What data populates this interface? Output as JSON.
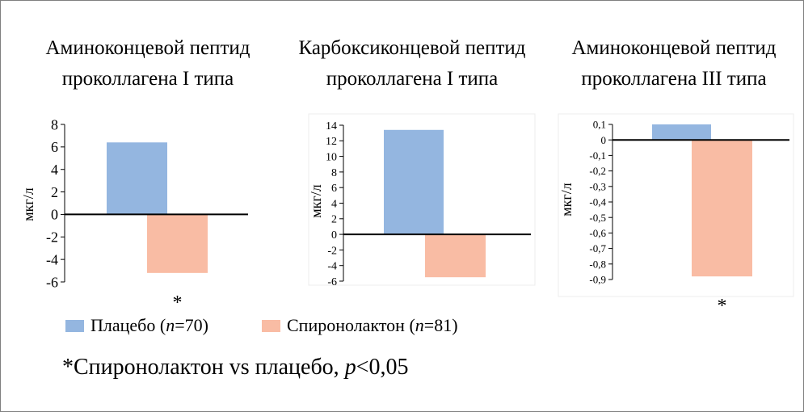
{
  "colors": {
    "placebo": "#94b6e0",
    "spironolactone": "#f9bca4"
  },
  "chart_data": [
    {
      "type": "bar",
      "title_lines": [
        "Аминоконцевой пептид",
        "проколлагена I типа"
      ],
      "ylabel": "мкг/л",
      "ylim": [
        -6,
        8
      ],
      "yticks": [
        "8",
        "6",
        "4",
        "2",
        "0",
        "-2",
        "-4",
        "-6"
      ],
      "series": [
        {
          "name": "Плацебо",
          "value": 6.4
        },
        {
          "name": "Спиронолактон",
          "value": -5.2,
          "annotation": "*"
        }
      ]
    },
    {
      "type": "bar",
      "title_lines": [
        "Карбоксиконцевой пептид",
        "проколлагена I типа"
      ],
      "ylabel": "мкг/л",
      "ylim": [
        -6,
        14
      ],
      "yticks": [
        "14",
        "12",
        "10",
        "8",
        "6",
        "4",
        "2",
        "0",
        "-2",
        "-4",
        "-6"
      ],
      "series": [
        {
          "name": "Плацебо",
          "value": 13.4
        },
        {
          "name": "Спиронолактон",
          "value": -5.5
        }
      ]
    },
    {
      "type": "bar",
      "title_lines": [
        "Аминоконцевой пептид",
        "проколлагена III типа"
      ],
      "ylabel": "мкг/л",
      "ylim": [
        -0.9,
        0.1
      ],
      "yticks": [
        "0,1",
        "0",
        "-0,1",
        "-0,2",
        "-0,3",
        "-0,4",
        "-0,5",
        "-0,6",
        "-0,7",
        "-0,8",
        "-0,9"
      ],
      "series": [
        {
          "name": "Плацебо",
          "value": 0.1
        },
        {
          "name": "Спиронолактон",
          "value": -0.88,
          "annotation": "*"
        }
      ]
    }
  ],
  "legend": {
    "placebo": {
      "label": "Плацебо (",
      "n_italic": "n",
      "count": "=70)"
    },
    "spironolactone": {
      "label": "Спиронолактон (",
      "n_italic": "n",
      "count": "=81)"
    }
  },
  "footnote": {
    "prefix": "*Спиронолактон vs плацебо, ",
    "p_italic": "p",
    "suffix": "<0,05"
  }
}
